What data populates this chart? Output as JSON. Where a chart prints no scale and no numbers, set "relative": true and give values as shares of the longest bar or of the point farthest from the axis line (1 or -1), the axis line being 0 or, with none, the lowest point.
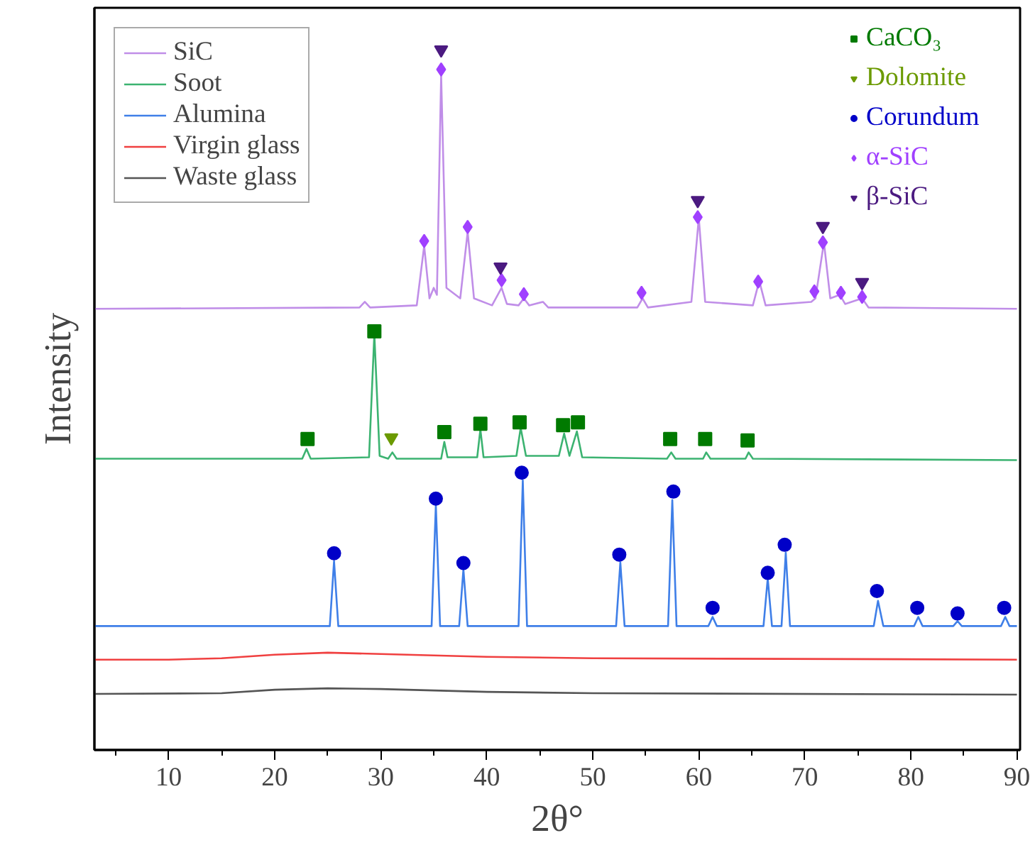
{
  "chart_data": {
    "type": "line",
    "relative": true,
    "xlabel": "2θ°",
    "ylabel": "Intensity",
    "xlim": [
      3,
      90.3
    ],
    "xticks": [
      10,
      20,
      30,
      40,
      50,
      60,
      70,
      80,
      90,
      {
        "value": 5,
        "label": null
      },
      {
        "value": 15,
        "label": null
      },
      {
        "value": 25,
        "label": null
      },
      {
        "value": 35,
        "label": null
      },
      {
        "value": 45,
        "label": null
      },
      {
        "value": 55,
        "label": null
      },
      {
        "value": 65,
        "label": null
      },
      {
        "value": 75,
        "label": null
      },
      {
        "value": 85,
        "label": null
      }
    ],
    "legend": "top left",
    "grid": false,
    "series": [
      {
        "name": "SiC",
        "color": "#c08ee8",
        "x": [
          3,
          28,
          28.5,
          29,
          33.4,
          34.1,
          34.6,
          35.0,
          35.3,
          35.7,
          36.2,
          37.5,
          38.2,
          38.8,
          40.5,
          41.4,
          41.9,
          43.0,
          43.5,
          44,
          45.3,
          45.8,
          54.2,
          54.7,
          55.2,
          59.3,
          60.0,
          60.6,
          65.1,
          65.7,
          66.3,
          70.6,
          71.0,
          71.8,
          72.4,
          73.3,
          73.8,
          75.4,
          76,
          90
        ],
        "values": [
          0.63,
          0.632,
          0.64,
          0.632,
          0.635,
          0.72,
          0.645,
          0.66,
          0.65,
          0.964,
          0.66,
          0.645,
          0.74,
          0.645,
          0.635,
          0.66,
          0.637,
          0.635,
          0.645,
          0.635,
          0.64,
          0.632,
          0.632,
          0.645,
          0.632,
          0.64,
          0.76,
          0.64,
          0.635,
          0.67,
          0.635,
          0.64,
          0.645,
          0.725,
          0.645,
          0.65,
          0.637,
          0.645,
          0.632,
          0.63
        ]
      },
      {
        "name": "Soot",
        "color": "#3cb371",
        "x": [
          3,
          22.6,
          23.0,
          23.4,
          28.9,
          29.4,
          29.9,
          30.7,
          31.1,
          31.5,
          35.7,
          36.0,
          36.3,
          39.1,
          39.4,
          39.7,
          42.8,
          43.2,
          43.7,
          46.8,
          47.3,
          47.8,
          48.5,
          49.0,
          57.0,
          57.4,
          57.8,
          60.4,
          60.7,
          61.1,
          64.4,
          64.7,
          65.1,
          90
        ],
        "values": [
          0.416,
          0.416,
          0.43,
          0.416,
          0.418,
          0.594,
          0.42,
          0.416,
          0.425,
          0.416,
          0.416,
          0.44,
          0.418,
          0.418,
          0.458,
          0.418,
          0.42,
          0.46,
          0.42,
          0.42,
          0.452,
          0.42,
          0.455,
          0.418,
          0.416,
          0.425,
          0.416,
          0.416,
          0.425,
          0.416,
          0.416,
          0.425,
          0.416,
          0.414
        ]
      },
      {
        "name": "Alumina",
        "color": "#3f7fe8",
        "x": [
          3,
          25.2,
          25.6,
          26.0,
          34.8,
          35.2,
          35.6,
          37.4,
          37.8,
          38.2,
          43.0,
          43.4,
          43.8,
          52.2,
          52.6,
          53.0,
          57.1,
          57.5,
          57.9,
          60.9,
          61.3,
          61.7,
          66.1,
          66.5,
          66.9,
          67.8,
          68.2,
          68.6,
          76.5,
          76.9,
          77.4,
          80.3,
          80.7,
          81.1,
          84.0,
          84.4,
          84.8,
          88.5,
          88.9,
          89.3,
          90
        ],
        "values": [
          0.177,
          0.177,
          0.27,
          0.177,
          0.177,
          0.35,
          0.177,
          0.177,
          0.258,
          0.177,
          0.177,
          0.385,
          0.177,
          0.177,
          0.268,
          0.177,
          0.177,
          0.357,
          0.177,
          0.177,
          0.19,
          0.177,
          0.177,
          0.245,
          0.177,
          0.177,
          0.282,
          0.177,
          0.177,
          0.213,
          0.177,
          0.177,
          0.19,
          0.177,
          0.177,
          0.184,
          0.177,
          0.177,
          0.19,
          0.177,
          0.177
        ]
      },
      {
        "name": "Virgin glass",
        "color": "#f04040",
        "x": [
          3,
          10,
          15,
          20,
          25,
          30,
          40,
          50,
          90
        ],
        "values": [
          0.129,
          0.129,
          0.131,
          0.136,
          0.139,
          0.137,
          0.133,
          0.131,
          0.129
        ]
      },
      {
        "name": "Waste glass",
        "color": "#555555",
        "x": [
          3,
          15,
          20,
          25,
          30,
          40,
          50,
          90
        ],
        "values": [
          0.08,
          0.081,
          0.086,
          0.088,
          0.087,
          0.083,
          0.081,
          0.079
        ]
      },
      {
        "name": "CaCO₃",
        "type": "scatter",
        "marker": "square",
        "color": "#007a00",
        "x": [
          23.1,
          29.4,
          36.0,
          39.4,
          43.1,
          47.2,
          48.6,
          57.3,
          60.6,
          64.6
        ],
        "values": [
          0.444,
          0.598,
          0.454,
          0.466,
          0.468,
          0.464,
          0.468,
          0.444,
          0.444,
          0.442
        ]
      },
      {
        "name": "Dolomite",
        "type": "scatter",
        "marker": "triangle",
        "color": "#6b9a00",
        "x": [
          31.0
        ],
        "values": [
          0.446
        ]
      },
      {
        "name": "Corundum",
        "type": "scatter",
        "marker": "circle",
        "color": "#0000c8",
        "x": [
          25.6,
          35.2,
          37.8,
          43.3,
          52.5,
          57.6,
          61.3,
          66.5,
          68.1,
          76.8,
          80.6,
          84.4,
          88.8
        ],
        "values": [
          0.281,
          0.359,
          0.267,
          0.396,
          0.279,
          0.369,
          0.203,
          0.253,
          0.293,
          0.227,
          0.203,
          0.195,
          0.203
        ]
      },
      {
        "name": "α-SiC",
        "type": "scatter",
        "marker": "diamond",
        "color": "#a040ff",
        "x": [
          35.7,
          34.1,
          38.2,
          41.4,
          43.5,
          54.6,
          59.9,
          65.6,
          70.9,
          71.7,
          73.4,
          75.4
        ],
        "values": [
          0.972,
          0.727,
          0.747,
          0.671,
          0.651,
          0.653,
          0.761,
          0.669,
          0.655,
          0.725,
          0.653,
          0.647
        ]
      },
      {
        "name": "β-SiC",
        "type": "scatter",
        "marker": "triangle",
        "color": "#4b1a80",
        "x": [
          35.7,
          41.3,
          59.9,
          71.7,
          75.4
        ],
        "values": [
          1.0,
          0.69,
          0.785,
          0.748,
          0.668
        ]
      }
    ]
  }
}
